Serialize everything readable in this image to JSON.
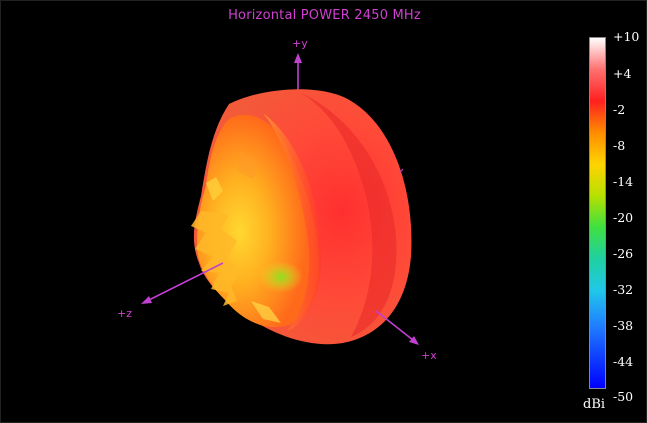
{
  "plot": {
    "title": "Horizontal POWER 2450  MHz"
  },
  "axes": {
    "y_label": "+y",
    "z_label": "+z",
    "x_label": "+x"
  },
  "colorbar": {
    "unit": "dBi",
    "ticks": [
      "+10",
      "+4",
      "-2",
      "-8",
      "-14",
      "-20",
      "-26",
      "-32",
      "-38",
      "-44",
      "-50"
    ],
    "gradient": [
      {
        "stop": "0%",
        "color": "#ffffff"
      },
      {
        "stop": "9%",
        "color": "#ff7070"
      },
      {
        "stop": "18%",
        "color": "#ff2020"
      },
      {
        "stop": "27%",
        "color": "#ff8c00"
      },
      {
        "stop": "36%",
        "color": "#ffd400"
      },
      {
        "stop": "45%",
        "color": "#b8e000"
      },
      {
        "stop": "54%",
        "color": "#40e040"
      },
      {
        "stop": "63%",
        "color": "#20d0a0"
      },
      {
        "stop": "72%",
        "color": "#20c8e8"
      },
      {
        "stop": "82%",
        "color": "#2080ff"
      },
      {
        "stop": "100%",
        "color": "#0000ff"
      }
    ]
  },
  "colors": {
    "axis": "#c040d0",
    "background": "#000000"
  }
}
